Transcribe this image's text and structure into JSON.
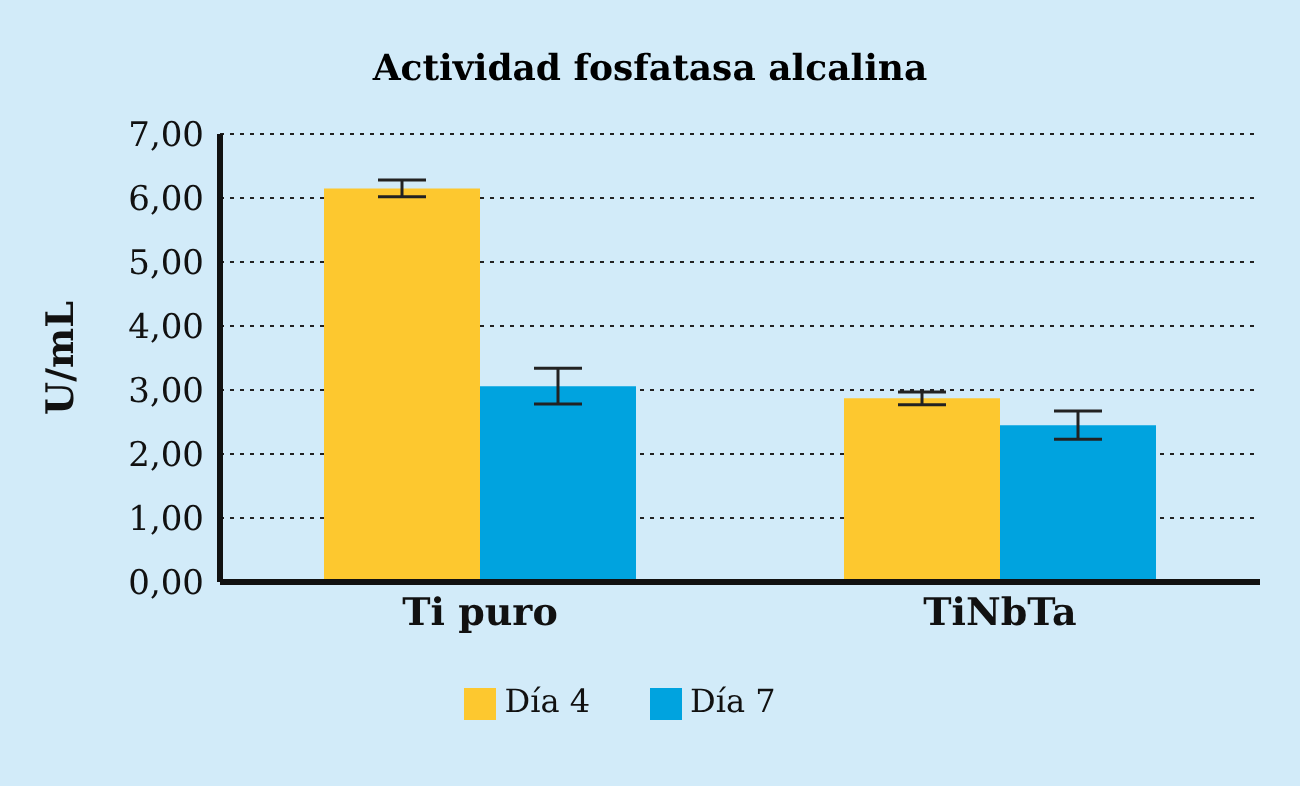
{
  "chart_data": {
    "type": "bar",
    "title": "Actividad fosfatasa alcalina",
    "ylabel": "U/mL",
    "categories": [
      "Ti puro",
      "TiNbTa"
    ],
    "series": [
      {
        "name": "Día 4",
        "color": "#fdc82f",
        "values": [
          6.15,
          2.87
        ],
        "errors": [
          0.13,
          0.1
        ]
      },
      {
        "name": "Día 7",
        "color": "#00a3df",
        "values": [
          3.06,
          2.45
        ],
        "errors": [
          0.28,
          0.22
        ]
      }
    ],
    "ylim": [
      0,
      7
    ],
    "yticks": [
      {
        "value": 0,
        "label": "0,00"
      },
      {
        "value": 1,
        "label": "1,00"
      },
      {
        "value": 2,
        "label": "2,00"
      },
      {
        "value": 3,
        "label": "3,00"
      },
      {
        "value": 4,
        "label": "4,00"
      },
      {
        "value": 5,
        "label": "5,00"
      },
      {
        "value": 6,
        "label": "6,00"
      },
      {
        "value": 7,
        "label": "7,00"
      }
    ],
    "grid": "y",
    "legend": "bottom"
  }
}
